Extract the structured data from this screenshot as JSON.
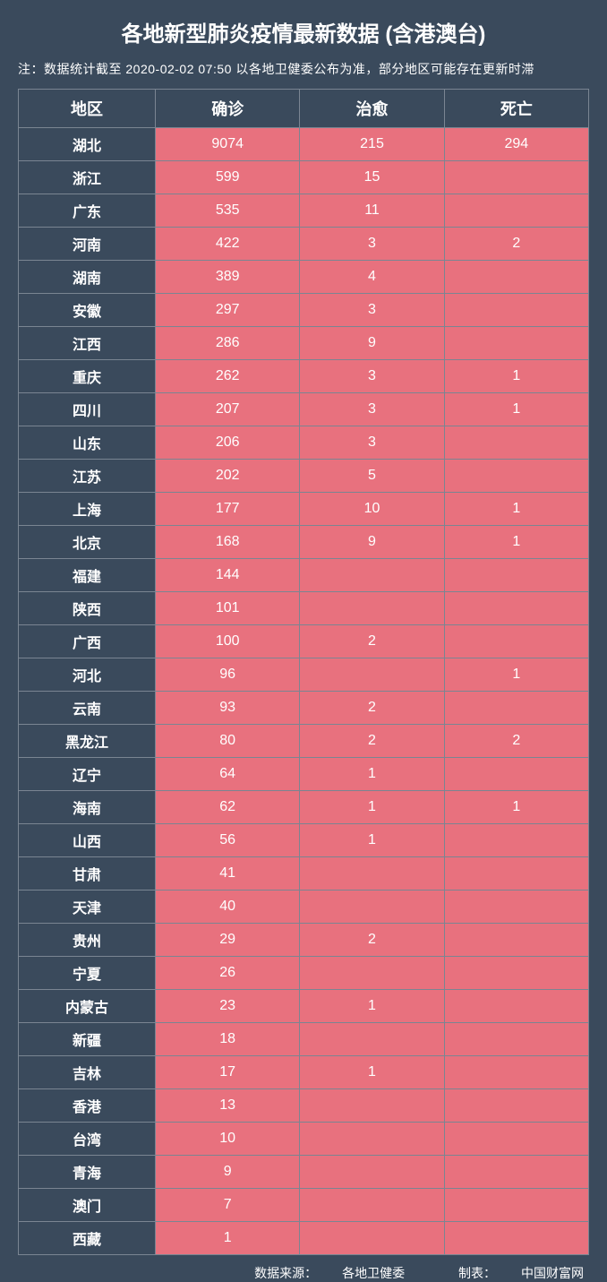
{
  "title": "各地新型肺炎疫情最新数据 (含港澳台)",
  "note": "注：数据统计截至 2020-02-02  07:50   以各地卫健委公布为准，部分地区可能存在更新时滞",
  "columns": [
    "地区",
    "确诊",
    "治愈",
    "死亡"
  ],
  "rows": [
    {
      "region": "湖北",
      "confirmed": "9074",
      "cured": "215",
      "death": "294"
    },
    {
      "region": "浙江",
      "confirmed": "599",
      "cured": "15",
      "death": ""
    },
    {
      "region": "广东",
      "confirmed": "535",
      "cured": "11",
      "death": ""
    },
    {
      "region": "河南",
      "confirmed": "422",
      "cured": "3",
      "death": "2"
    },
    {
      "region": "湖南",
      "confirmed": "389",
      "cured": "4",
      "death": ""
    },
    {
      "region": "安徽",
      "confirmed": "297",
      "cured": "3",
      "death": ""
    },
    {
      "region": "江西",
      "confirmed": "286",
      "cured": "9",
      "death": ""
    },
    {
      "region": "重庆",
      "confirmed": "262",
      "cured": "3",
      "death": "1"
    },
    {
      "region": "四川",
      "confirmed": "207",
      "cured": "3",
      "death": "1"
    },
    {
      "region": "山东",
      "confirmed": "206",
      "cured": "3",
      "death": ""
    },
    {
      "region": "江苏",
      "confirmed": "202",
      "cured": "5",
      "death": ""
    },
    {
      "region": "上海",
      "confirmed": "177",
      "cured": "10",
      "death": "1"
    },
    {
      "region": "北京",
      "confirmed": "168",
      "cured": "9",
      "death": "1"
    },
    {
      "region": "福建",
      "confirmed": "144",
      "cured": "",
      "death": ""
    },
    {
      "region": "陕西",
      "confirmed": "101",
      "cured": "",
      "death": ""
    },
    {
      "region": "广西",
      "confirmed": "100",
      "cured": "2",
      "death": ""
    },
    {
      "region": "河北",
      "confirmed": "96",
      "cured": "",
      "death": "1"
    },
    {
      "region": "云南",
      "confirmed": "93",
      "cured": "2",
      "death": ""
    },
    {
      "region": "黑龙江",
      "confirmed": "80",
      "cured": "2",
      "death": "2"
    },
    {
      "region": "辽宁",
      "confirmed": "64",
      "cured": "1",
      "death": ""
    },
    {
      "region": "海南",
      "confirmed": "62",
      "cured": "1",
      "death": "1"
    },
    {
      "region": "山西",
      "confirmed": "56",
      "cured": "1",
      "death": ""
    },
    {
      "region": "甘肃",
      "confirmed": "41",
      "cured": "",
      "death": ""
    },
    {
      "region": "天津",
      "confirmed": "40",
      "cured": "",
      "death": ""
    },
    {
      "region": "贵州",
      "confirmed": "29",
      "cured": "2",
      "death": ""
    },
    {
      "region": "宁夏",
      "confirmed": "26",
      "cured": "",
      "death": ""
    },
    {
      "region": "内蒙古",
      "confirmed": "23",
      "cured": "1",
      "death": ""
    },
    {
      "region": "新疆",
      "confirmed": "18",
      "cured": "",
      "death": ""
    },
    {
      "region": "吉林",
      "confirmed": "17",
      "cured": "1",
      "death": ""
    },
    {
      "region": "香港",
      "confirmed": "13",
      "cured": "",
      "death": ""
    },
    {
      "region": "台湾",
      "confirmed": "10",
      "cured": "",
      "death": ""
    },
    {
      "region": "青海",
      "confirmed": "9",
      "cured": "",
      "death": ""
    },
    {
      "region": "澳门",
      "confirmed": "7",
      "cured": "",
      "death": ""
    },
    {
      "region": "西藏",
      "confirmed": "1",
      "cured": "",
      "death": ""
    }
  ],
  "footer": {
    "source_label": "数据来源：",
    "source_value": "各地卫健委",
    "maker_label": "制表：",
    "maker_value": "中国财富网"
  },
  "styling": {
    "type": "table",
    "background_color": "#3a4a5c",
    "header_bg": "#3a4a5c",
    "region_col_bg": "#3a4a5c",
    "data_col_bg": "#e8717e",
    "border_color": "#7a8592",
    "text_color": "#ffffff",
    "title_fontsize": 24,
    "note_fontsize": 14,
    "header_fontsize": 18,
    "cell_fontsize": 16,
    "footer_fontsize": 14,
    "col_widths": [
      "24%",
      "25.3%",
      "25.3%",
      "25.3%"
    ]
  }
}
